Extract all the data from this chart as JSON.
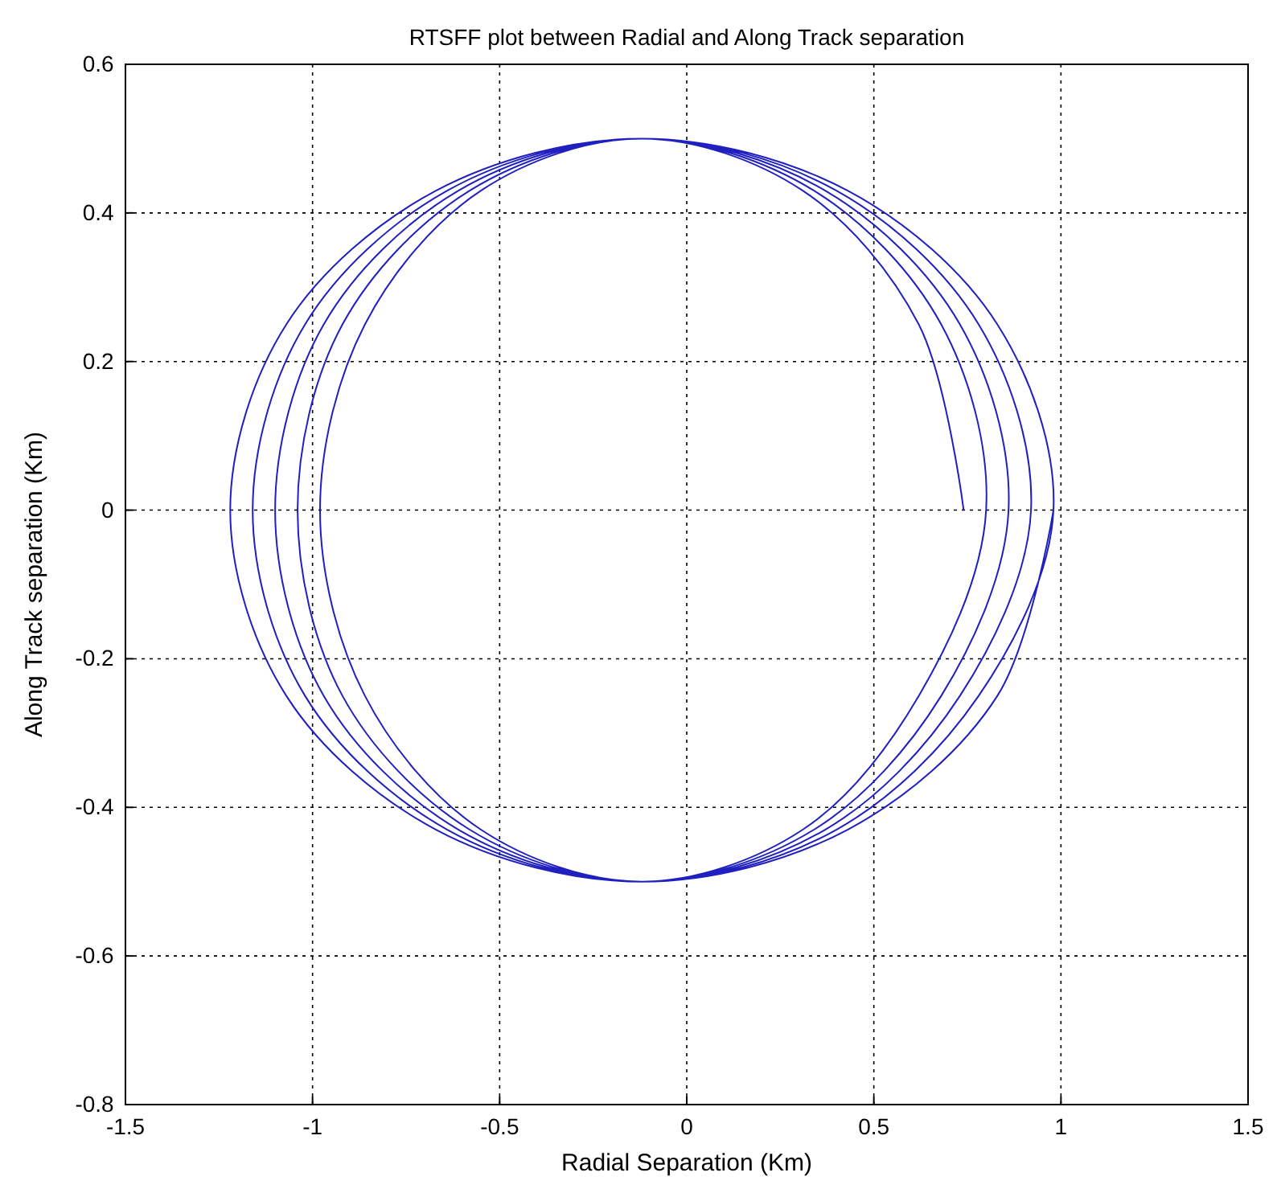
{
  "chart_data": {
    "type": "line",
    "title": "RTSFF plot between Radial and Along Track separation",
    "xlabel": "Radial Separation (Km)",
    "ylabel": "Along Track separation (Km)",
    "xlim": [
      -1.5,
      1.5
    ],
    "xticks": [
      -1.5,
      -1,
      -0.5,
      0,
      0.5,
      1,
      1.5
    ],
    "ylim": [
      -0.8,
      0.6
    ],
    "yticks": [
      -0.8,
      -0.6,
      -0.4,
      -0.2,
      0,
      0.2,
      0.4,
      0.6
    ],
    "grid": true,
    "line_style": "solid",
    "marker": "none",
    "series": [
      {
        "color": "#2020c0",
        "x": [
          0.74,
          0.62,
          0.31,
          -0.12,
          -0.55,
          -0.86,
          -0.98,
          -0.86,
          -0.55,
          -0.12,
          0.31,
          0.62,
          0.8,
          0.68,
          0.34,
          -0.12,
          -0.58,
          -0.92,
          -1.04,
          -0.92,
          -0.58,
          -0.12,
          0.34,
          0.68,
          0.86,
          0.73,
          0.37,
          -0.12,
          -0.61,
          -0.97,
          -1.1,
          -0.97,
          -0.61,
          -0.12,
          0.37,
          0.73,
          0.92,
          0.78,
          0.4,
          -0.12,
          -0.64,
          -1.02,
          -1.16,
          -1.02,
          -0.64,
          -0.12,
          0.4,
          0.78,
          0.98,
          0.83,
          0.43,
          -0.12,
          -0.67,
          -1.07,
          -1.22,
          -1.07,
          -0.67,
          -0.12,
          0.43,
          0.83,
          0.98
        ],
        "values": [
          0,
          0.25,
          0.43,
          0.5,
          0.43,
          0.25,
          0,
          -0.25,
          -0.43,
          -0.5,
          -0.43,
          -0.25,
          0,
          0.25,
          0.43,
          0.5,
          0.43,
          0.25,
          0,
          -0.25,
          -0.43,
          -0.5,
          -0.43,
          -0.25,
          0,
          0.25,
          0.43,
          0.5,
          0.43,
          0.25,
          0,
          -0.25,
          -0.43,
          -0.5,
          -0.43,
          -0.25,
          0,
          0.25,
          0.43,
          0.5,
          0.43,
          0.25,
          0,
          -0.25,
          -0.43,
          -0.5,
          -0.43,
          -0.25,
          0,
          0.25,
          0.43,
          0.5,
          0.43,
          0.25,
          0,
          -0.25,
          -0.43,
          -0.5,
          -0.43,
          -0.25,
          0
        ]
      }
    ]
  }
}
